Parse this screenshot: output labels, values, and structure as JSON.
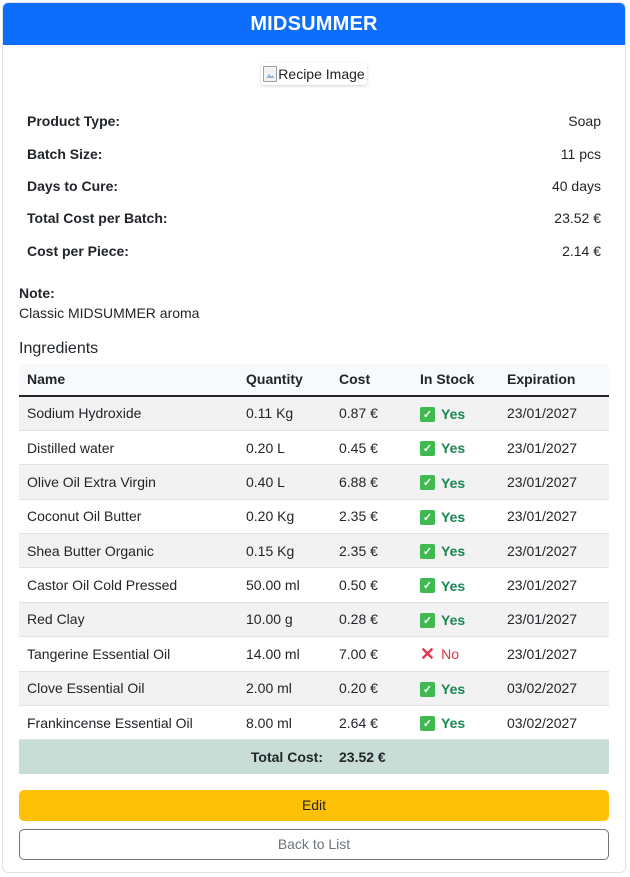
{
  "header": {
    "title": "MIDSUMMER"
  },
  "image": {
    "alt": "Recipe Image"
  },
  "details": [
    {
      "label": "Product Type:",
      "value": "Soap"
    },
    {
      "label": "Batch Size:",
      "value": "11 pcs"
    },
    {
      "label": "Days to Cure:",
      "value": "40 days"
    },
    {
      "label": "Total Cost per Batch:",
      "value": "23.52 €"
    },
    {
      "label": "Cost per Piece:",
      "value": "2.14 €"
    }
  ],
  "note": {
    "label": "Note:",
    "text": "Classic MIDSUMMER aroma"
  },
  "ingredients": {
    "title": "Ingredients",
    "columns": [
      "Name",
      "Quantity",
      "Cost",
      "In Stock",
      "Expiration"
    ],
    "rows": [
      {
        "name": "Sodium Hydroxide",
        "quantity": "0.11 Kg",
        "cost": "0.87 €",
        "in_stock": "Yes",
        "expiration": "23/01/2027"
      },
      {
        "name": "Distilled water",
        "quantity": "0.20 L",
        "cost": "0.45 €",
        "in_stock": "Yes",
        "expiration": "23/01/2027"
      },
      {
        "name": "Olive Oil Extra Virgin",
        "quantity": "0.40 L",
        "cost": "6.88 €",
        "in_stock": "Yes",
        "expiration": "23/01/2027"
      },
      {
        "name": "Coconut Oil Butter",
        "quantity": "0.20 Kg",
        "cost": "2.35 €",
        "in_stock": "Yes",
        "expiration": "23/01/2027"
      },
      {
        "name": "Shea Butter Organic",
        "quantity": "0.15 Kg",
        "cost": "2.35 €",
        "in_stock": "Yes",
        "expiration": "23/01/2027"
      },
      {
        "name": "Castor Oil Cold Pressed",
        "quantity": "50.00 ml",
        "cost": "0.50 €",
        "in_stock": "Yes",
        "expiration": "23/01/2027"
      },
      {
        "name": "Red Clay",
        "quantity": "10.00 g",
        "cost": "0.28 €",
        "in_stock": "Yes",
        "expiration": "23/01/2027"
      },
      {
        "name": "Tangerine Essential Oil",
        "quantity": "14.00 ml",
        "cost": "7.00 €",
        "in_stock": "No",
        "expiration": "23/01/2027"
      },
      {
        "name": "Clove Essential Oil",
        "quantity": "2.00 ml",
        "cost": "0.20 €",
        "in_stock": "Yes",
        "expiration": "03/02/2027"
      },
      {
        "name": "Frankincense Essential Oil",
        "quantity": "8.00 ml",
        "cost": "2.64 €",
        "in_stock": "Yes",
        "expiration": "03/02/2027"
      }
    ],
    "total_label": "Total Cost:",
    "total_value": "23.52 €"
  },
  "buttons": {
    "edit": "Edit",
    "back": "Back to List"
  },
  "colors": {
    "primary": "#0d6efd",
    "warning": "#ffc107",
    "success": "#198754",
    "danger": "#dc3545",
    "total_bg": "#c8ddd6"
  },
  "icons": {
    "in_stock_yes": "check-mark-icon",
    "in_stock_no": "cross-mark-icon",
    "image": "broken-image-icon"
  }
}
